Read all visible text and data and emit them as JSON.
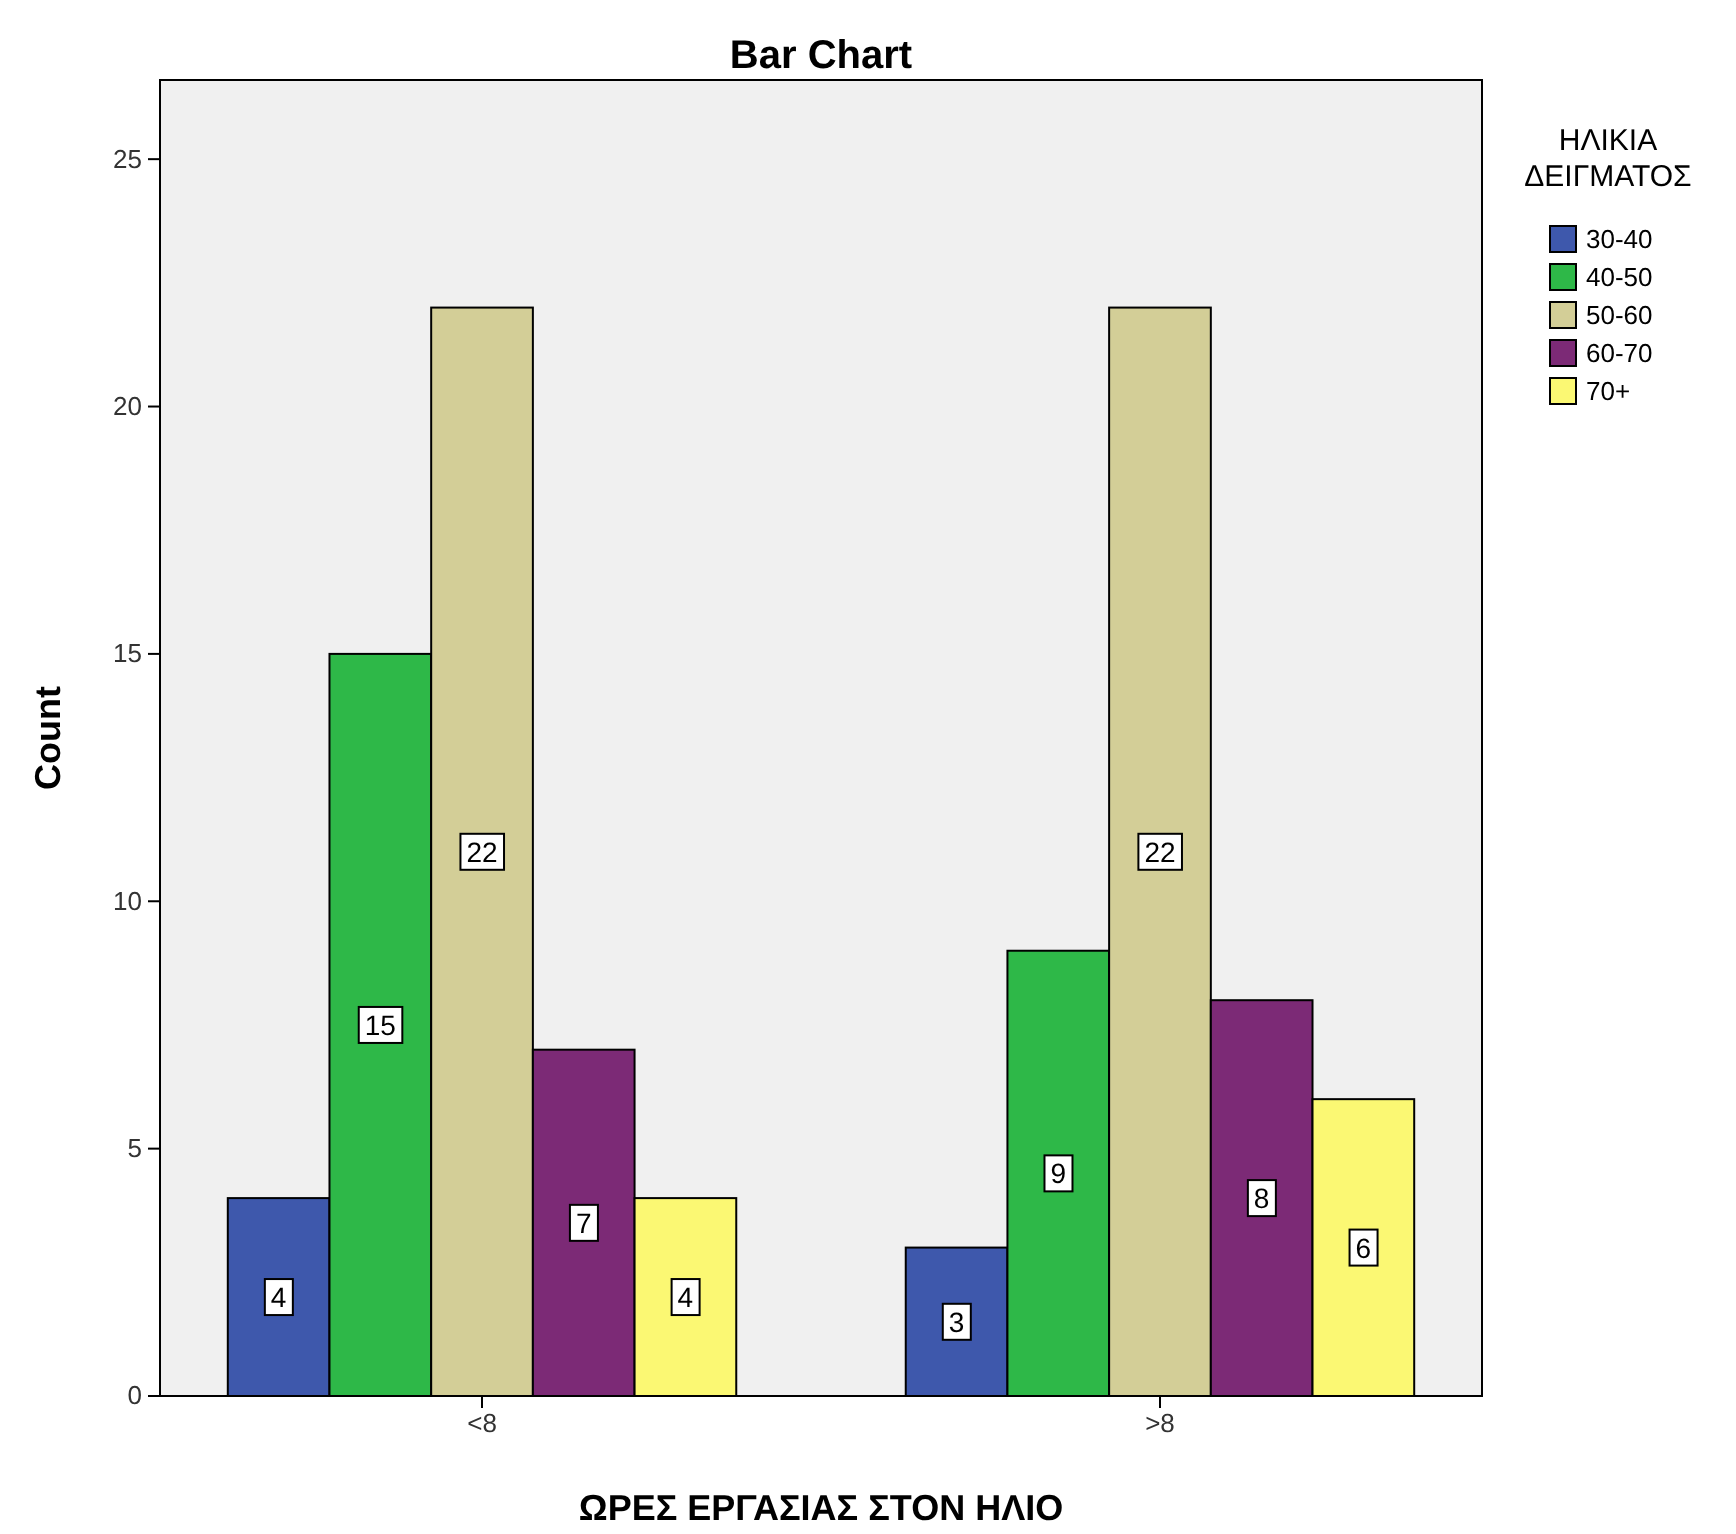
{
  "chart_data": {
    "type": "bar",
    "title": "Bar Chart",
    "xlabel": "ΩΡΕΣ ΕΡΓΑΣΙΑΣ ΣΤΟΝ ΗΛΙΟ",
    "ylabel": "Count",
    "legend_title": "ΗΛΙΚΙΑ ΔΕΙΓΜΑΤΟΣ",
    "legend": "right",
    "data_labels": true,
    "categories": [
      "<8",
      ">8"
    ],
    "series": [
      {
        "name": "30-40",
        "color": "#3e58ac",
        "values": [
          4,
          3
        ]
      },
      {
        "name": "40-50",
        "color": "#2eb848",
        "values": [
          15,
          9
        ]
      },
      {
        "name": "50-60",
        "color": "#d3ce97",
        "values": [
          22,
          22
        ]
      },
      {
        "name": "60-70",
        "color": "#7c2a76",
        "values": [
          7,
          8
        ]
      },
      {
        "name": "70+",
        "color": "#fbf873",
        "values": [
          4,
          6
        ]
      }
    ],
    "ylim": [
      0,
      26.6
    ],
    "yticks": [
      0,
      5,
      10,
      15,
      20,
      25
    ]
  }
}
